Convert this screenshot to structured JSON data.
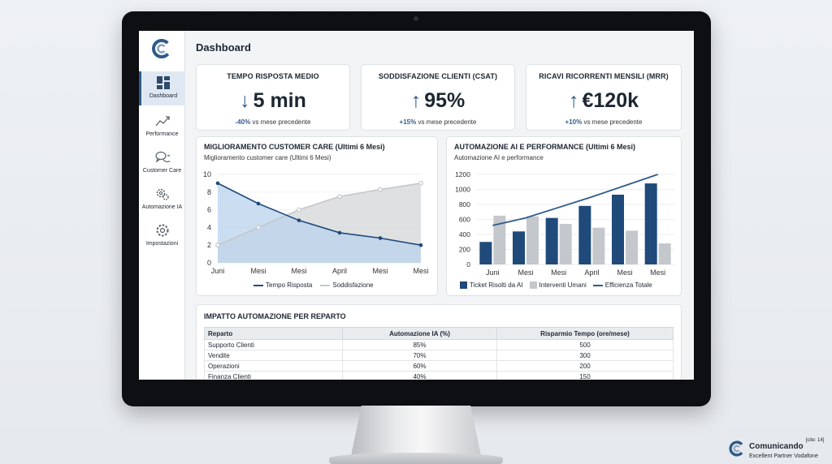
{
  "page_title": "Dashboard",
  "sidebar": {
    "items": [
      {
        "label": "Dashboard",
        "icon": "dashboard-grid-icon",
        "active": true
      },
      {
        "label": "Performance",
        "icon": "trend-up-icon"
      },
      {
        "label": "Customer Care",
        "icon": "chat-bubbles-icon"
      },
      {
        "label": "Automazione IA",
        "icon": "gears-icon"
      },
      {
        "label": "Impostazioni",
        "icon": "gear-icon"
      }
    ]
  },
  "kpis": [
    {
      "title": "TEMPO RISPOSTA MEDIO",
      "arrow": "↓",
      "value": "5 min",
      "delta": "-40%",
      "sub": "vs mese precedente"
    },
    {
      "title": "SODDISFAZIONE CLIENTI (CSAT)",
      "arrow": "↑",
      "value": "95%",
      "delta": "+15%",
      "sub": "vs mese precedente"
    },
    {
      "title": "RICAVI RICORRENTI MENSILI (MRR)",
      "arrow": "↑",
      "value": "€120k",
      "delta": "+10%",
      "sub": "vs mese precedente"
    }
  ],
  "colors": {
    "accent": "#2f5b8a",
    "dark_bar": "#1f4a7a",
    "light_bar": "#c4c7cb",
    "area_blue": "#b9d3ec",
    "area_gray": "#d8dadd"
  },
  "chart_data": [
    {
      "type": "area",
      "title": "MIGLIORAMENTO CUSTOMER CARE (Ultimi 6 Mesi)",
      "subtitle": "Miglioramento customer care (Ultimi 6 Mesi)",
      "categories": [
        "Juni",
        "Mesi",
        "Mesi",
        "April",
        "Mesi",
        "Mesi"
      ],
      "ylim": [
        0,
        10
      ],
      "yticks": [
        0,
        2,
        4,
        6,
        8,
        10
      ],
      "series": [
        {
          "name": "Tempo Risposta",
          "values": [
            9,
            6.7,
            4.8,
            3.4,
            2.8,
            2
          ]
        },
        {
          "name": "Soddisfazione",
          "values": [
            2,
            4,
            6,
            7.5,
            8.3,
            9
          ]
        }
      ],
      "legend": "bottom"
    },
    {
      "type": "bar",
      "title": "AUTOMAZIONE AI E PERFORMANCE (Ultimi 6 Mesi)",
      "subtitle": "Automazione AI e performance",
      "categories": [
        "Juni",
        "Mesi",
        "Mesi",
        "April",
        "Mesi",
        "Mesi"
      ],
      "ylim": [
        0,
        1200
      ],
      "yticks": [
        0,
        200,
        400,
        600,
        800,
        1000,
        1200
      ],
      "series": [
        {
          "name": "Ticket Risolti da AI",
          "values": [
            300,
            440,
            620,
            780,
            930,
            1080
          ]
        },
        {
          "name": "Interventi Umani",
          "values": [
            650,
            640,
            540,
            490,
            450,
            280
          ]
        },
        {
          "name": "Efficienza Totale",
          "type": "line",
          "values": [
            520,
            620,
            760,
            900,
            1050,
            1200
          ]
        }
      ],
      "legend": "bottom"
    }
  ],
  "table": {
    "title": "IMPATTO AUTOMAZIONE PER REPARTO",
    "headers": [
      "Reparto",
      "Automazione IA (%)",
      "Risparmio Tempo (ore/mese)"
    ],
    "rows": [
      [
        "Supporto Clienti",
        "85%",
        "500"
      ],
      [
        "Vendite",
        "70%",
        "300"
      ],
      [
        "Operazioni",
        "60%",
        "200"
      ],
      [
        "Finanza Clienti",
        "40%",
        "150"
      ]
    ]
  },
  "brand": {
    "name": "Comunicando",
    "cite": "[cite: 14]",
    "tagline": "Excellent Partner Vodafone"
  }
}
